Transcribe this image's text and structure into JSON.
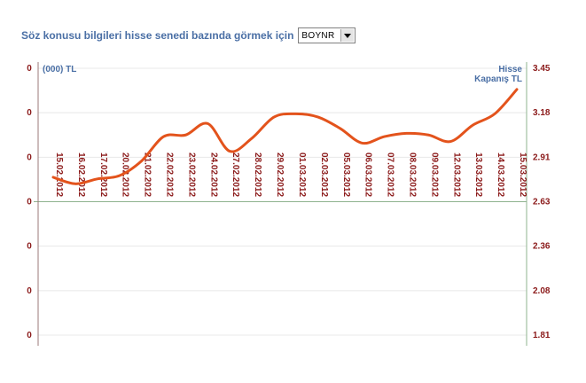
{
  "selector": {
    "label": "Söz konusu bilgileri hisse senedi bazında görmek için",
    "selected": "BOYNR"
  },
  "colors": {
    "line": "#e3531c",
    "left_axis_line": "#9b7a7a",
    "right_axis_line": "#8fb38f",
    "grid": "#e8e8e8",
    "axis_title": "#4a6fa5",
    "tick_text": "#8b1a1a"
  },
  "chart_data": {
    "type": "line",
    "left_axis": {
      "title": "(000) TL",
      "ticks": [
        "0",
        "0",
        "0",
        "0",
        "0",
        "0",
        "0"
      ]
    },
    "right_axis": {
      "title_lines": [
        "Hisse",
        "Kapanış TL"
      ],
      "ticks": [
        "3.45",
        "3.18",
        "2.91",
        "2.63",
        "2.36",
        "2.08",
        "1.81"
      ],
      "ylim": [
        1.81,
        3.45
      ]
    },
    "categories": [
      "15.02.2012",
      "16.02.2012",
      "17.02.2012",
      "20.02.2012",
      "21.02.2012",
      "22.02.2012",
      "23.02.2012",
      "24.02.2012",
      "27.02.2012",
      "28.02.2012",
      "29.02.2012",
      "01.03.2012",
      "02.03.2012",
      "05.03.2012",
      "06.03.2012",
      "07.03.2012",
      "08.03.2012",
      "09.03.2012",
      "12.03.2012",
      "13.03.2012",
      "14.03.2012",
      "15.03.2012"
    ],
    "series": [
      {
        "values": [
          2.78,
          2.74,
          2.77,
          2.79,
          2.88,
          3.03,
          3.04,
          3.11,
          2.94,
          3.02,
          3.15,
          3.17,
          3.15,
          3.08,
          2.99,
          3.03,
          3.05,
          3.04,
          3.0,
          3.1,
          3.17,
          3.32
        ]
      }
    ],
    "grid": true
  }
}
